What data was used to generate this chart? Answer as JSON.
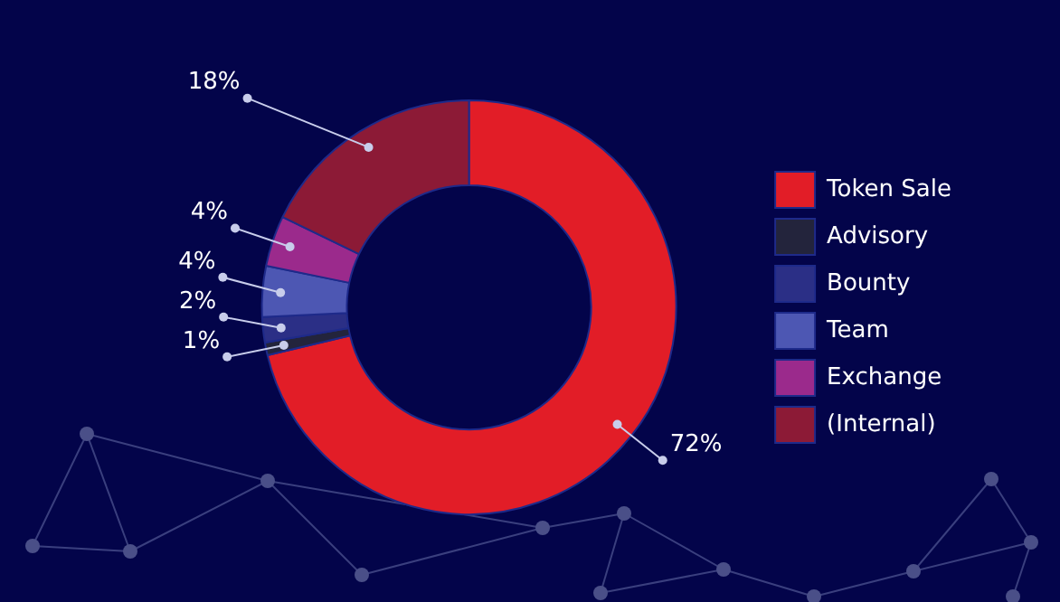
{
  "chart_data": {
    "type": "donut",
    "categories": [
      "Token Sale",
      "Advisory",
      "Bounty",
      "Team",
      "Exchange",
      "(Internal)"
    ],
    "values": [
      72,
      1,
      2,
      4,
      4,
      18
    ],
    "colors": [
      "#e21d27",
      "#23243c",
      "#2b2f86",
      "#4d57b3",
      "#9b2a8c",
      "#8c1a36"
    ],
    "value_labels": [
      "72%",
      "1%",
      "2%",
      "4%",
      "4%",
      "18%"
    ],
    "legend": "right"
  }
}
